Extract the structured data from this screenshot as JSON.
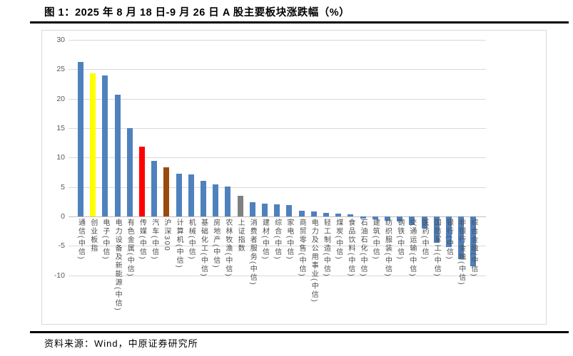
{
  "page": {
    "title": "图 1：2025 年 8 月 18 日-9 月 26 日 A 股主要板块涨跌幅（%）",
    "source": "资料来源：Wind，中原证券研究所"
  },
  "chart_data": {
    "type": "bar",
    "title": "2025年8月18日-9月26日A股主要板块涨跌幅（%）",
    "xlabel": "",
    "ylabel": "",
    "ylim": [
      -10,
      30
    ],
    "yticks": [
      30,
      25,
      20,
      15,
      10,
      5,
      0,
      -5,
      -10
    ],
    "grid": true,
    "legend": "none",
    "categories": [
      "通信(中信)",
      "创业板指",
      "电子(中信)",
      "电力设备及新能源(中信)",
      "有色金属(中信)",
      "传媒(中信)",
      "汽车(中信)",
      "沪深300",
      "计算机(中信)",
      "机械(中信)",
      "基础化工(中信)",
      "房地产(中信)",
      "农林牧渔(中信)",
      "上证指数",
      "消费者服务(中信)",
      "建材(中信)",
      "综合(中信)",
      "家电(中信)",
      "商贸零售(中信)",
      "电力及公用事业(中信)",
      "轻工制造(中信)",
      "煤炭(中信)",
      "食品饮料(中信)",
      "石油石化(中信)",
      "建筑(中信)",
      "纺织服装(中信)",
      "钢铁(中信)",
      "交通运输(中信)",
      "医药(中信)",
      "国防军工(中信)",
      "银行(中信)",
      "非银行金融(中信)",
      "综合金融(中信)"
    ],
    "values": [
      26.2,
      24.3,
      24.0,
      20.7,
      15.0,
      11.8,
      9.4,
      8.3,
      7.2,
      7.1,
      6.0,
      5.4,
      5.1,
      3.5,
      2.4,
      2.2,
      2.1,
      1.9,
      1.0,
      0.9,
      0.6,
      0.5,
      0.4,
      -0.4,
      -0.5,
      -0.7,
      -0.9,
      -1.4,
      -2.0,
      -4.5,
      -5.2,
      -7.3,
      -8.5
    ],
    "colors": [
      "#4F81BD",
      "#FFFF00",
      "#4F81BD",
      "#4F81BD",
      "#4F81BD",
      "#FF0000",
      "#4F81BD",
      "#9C4A0A",
      "#4F81BD",
      "#4F81BD",
      "#4F81BD",
      "#4F81BD",
      "#4F81BD",
      "#808080",
      "#4F81BD",
      "#4F81BD",
      "#4F81BD",
      "#4F81BD",
      "#4F81BD",
      "#4F81BD",
      "#4F81BD",
      "#4F81BD",
      "#4F81BD",
      "#4F81BD",
      "#4F81BD",
      "#4F81BD",
      "#4F81BD",
      "#4F81BD",
      "#4F81BD",
      "#4F81BD",
      "#4F81BD",
      "#4F81BD",
      "#4F81BD"
    ],
    "default_bar_color": "#4F81BD",
    "highlight_bars": {
      "创业板指": "#FFFF00",
      "传媒(中信)": "#FF0000",
      "沪深300": "#9C4A0A",
      "上证指数": "#808080"
    },
    "gridline_color": "#D9D9D9"
  }
}
